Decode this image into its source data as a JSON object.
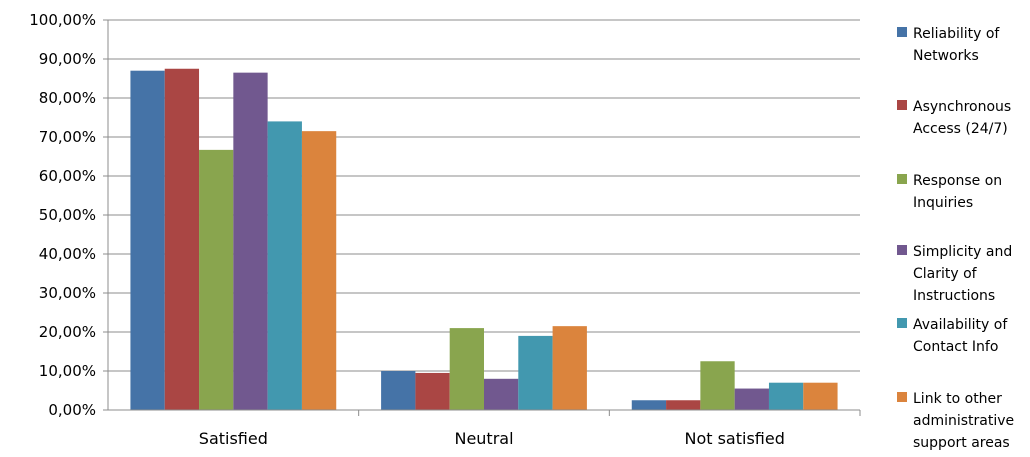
{
  "chart_data": {
    "type": "bar",
    "categories": [
      "Satisfied",
      "Neutral",
      "Not satisfied"
    ],
    "series": [
      {
        "name": "Reliability of Networks",
        "color": "#4573A7",
        "values": [
          87.0,
          10.0,
          2.5
        ]
      },
      {
        "name": "Asynchronous Access (24/7)",
        "color": "#AA4644",
        "values": [
          87.5,
          9.5,
          2.5
        ]
      },
      {
        "name": "Response on Inquiries",
        "color": "#89A54E",
        "values": [
          66.7,
          21.0,
          12.5
        ]
      },
      {
        "name": "Simplicity and Clarity of Instructions",
        "color": "#71588F",
        "values": [
          86.5,
          8.0,
          5.5
        ]
      },
      {
        "name": "Availability of Contact Info",
        "color": "#4298AF",
        "values": [
          74.0,
          19.0,
          7.0
        ]
      },
      {
        "name": "Link to other administrative support areas",
        "color": "#DB843D",
        "values": [
          71.5,
          21.5,
          7.0
        ]
      }
    ],
    "yticks": [
      "0,00%",
      "10,00%",
      "20,00%",
      "30,00%",
      "40,00%",
      "50,00%",
      "60,00%",
      "70,00%",
      "80,00%",
      "90,00%",
      "100,00%"
    ],
    "ylim": [
      0,
      100
    ],
    "grid": true,
    "legend": {
      "placement": "right",
      "entries": [
        {
          "lines": [
            "Reliability of",
            "Networks"
          ]
        },
        {
          "lines": [
            "Asynchronous",
            "Access (24/7)"
          ]
        },
        {
          "lines": [
            "Response on",
            "Inquiries"
          ]
        },
        {
          "lines": [
            "Simplicity and",
            "Clarity of",
            "Instructions"
          ]
        },
        {
          "lines": [
            "Availability of",
            "Contact Info"
          ]
        },
        {
          "lines": [
            "Link to other",
            "administrative",
            "support areas"
          ]
        }
      ]
    }
  }
}
